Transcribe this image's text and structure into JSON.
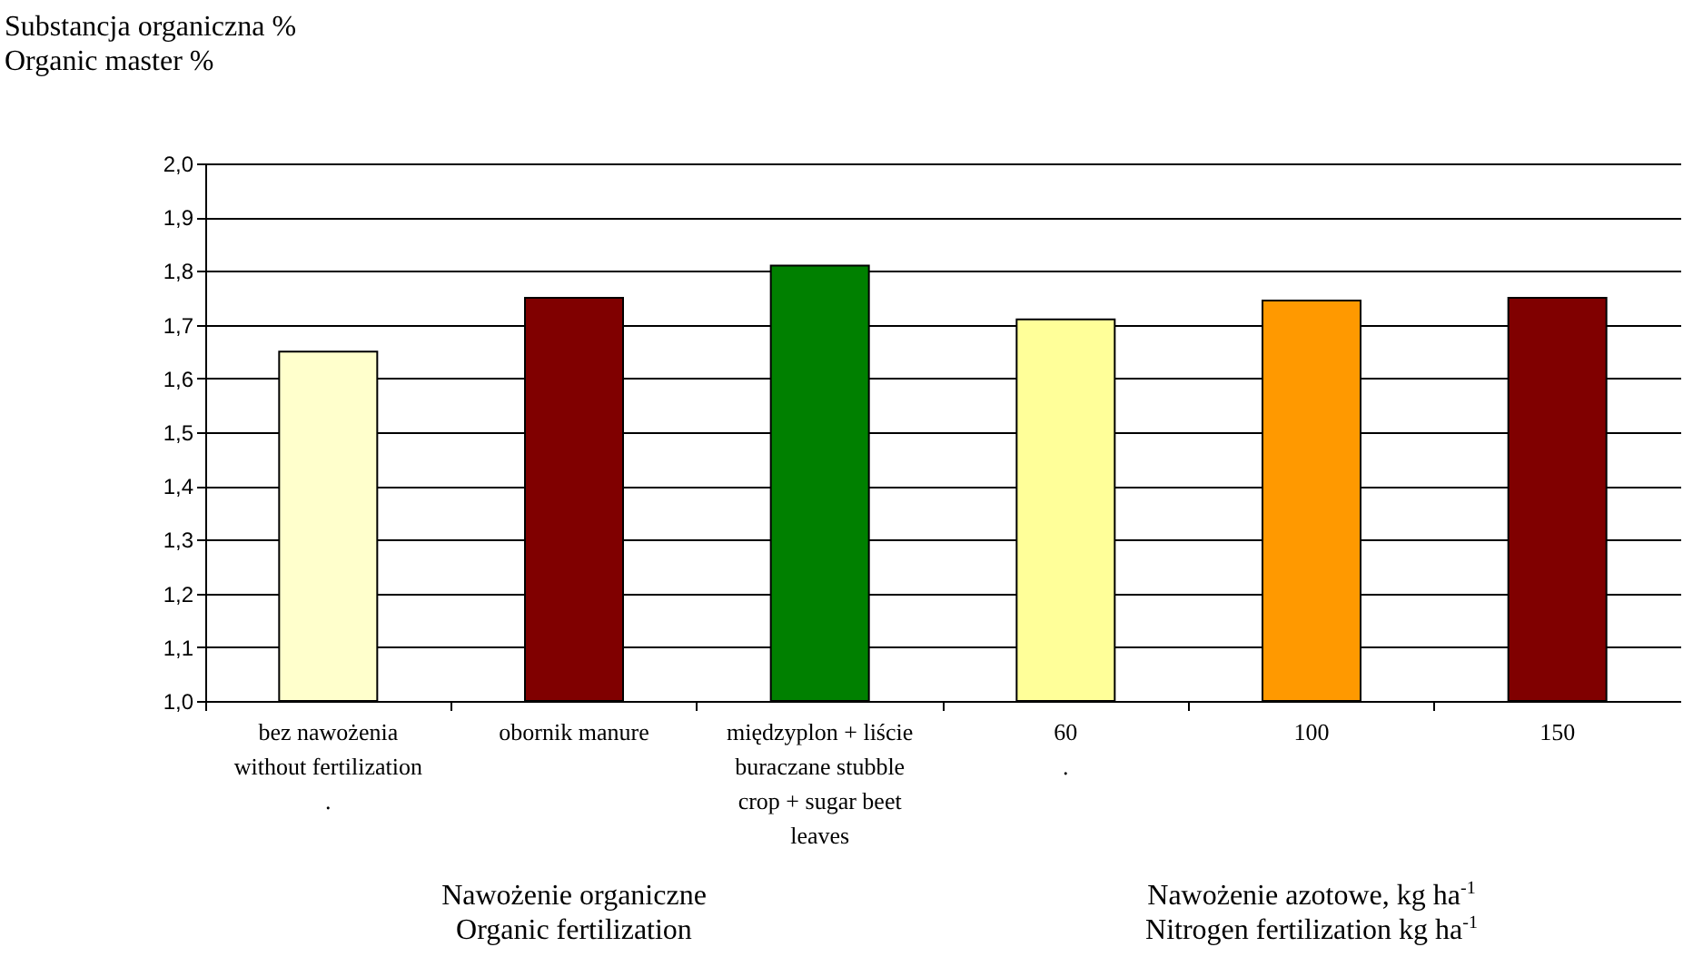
{
  "chart_data": {
    "type": "bar",
    "ylabel": "Substancja organiczna %\nOrganic master %",
    "categories": [
      "bez nawożenia\nwithout fertilization\n.",
      "obornik     manure",
      "międzyplon + liście\nburaczane stubble\ncrop + sugar beet\nleaves",
      "60\n.",
      "100",
      "150"
    ],
    "values": [
      1.65,
      1.75,
      1.81,
      1.71,
      1.745,
      1.75
    ],
    "colors": [
      "#ffffcc",
      "#800000",
      "#008000",
      "#ffff99",
      "#ff9900",
      "#800000"
    ],
    "ylim": [
      1.0,
      2.0
    ],
    "yticks": [
      {
        "value": 1.0,
        "label": "1,0"
      },
      {
        "value": 1.1,
        "label": "1,1"
      },
      {
        "value": 1.2,
        "label": "1,2"
      },
      {
        "value": 1.3,
        "label": "1,3"
      },
      {
        "value": 1.4,
        "label": "1,4"
      },
      {
        "value": 1.5,
        "label": "1,5"
      },
      {
        "value": 1.6,
        "label": "1,6"
      },
      {
        "value": 1.7,
        "label": "1,7"
      },
      {
        "value": 1.8,
        "label": "1,8"
      },
      {
        "value": 1.9,
        "label": "1,9"
      },
      {
        "value": 2.0,
        "label": "2,0"
      }
    ],
    "grid": "y",
    "annotations": [
      "Nawożenie organiczne\nOrganic fertilization",
      "Nawożenie azotowe, kg ha$^{-1}$\nNitrogen fertilization kg ha$^{-1}$"
    ]
  }
}
